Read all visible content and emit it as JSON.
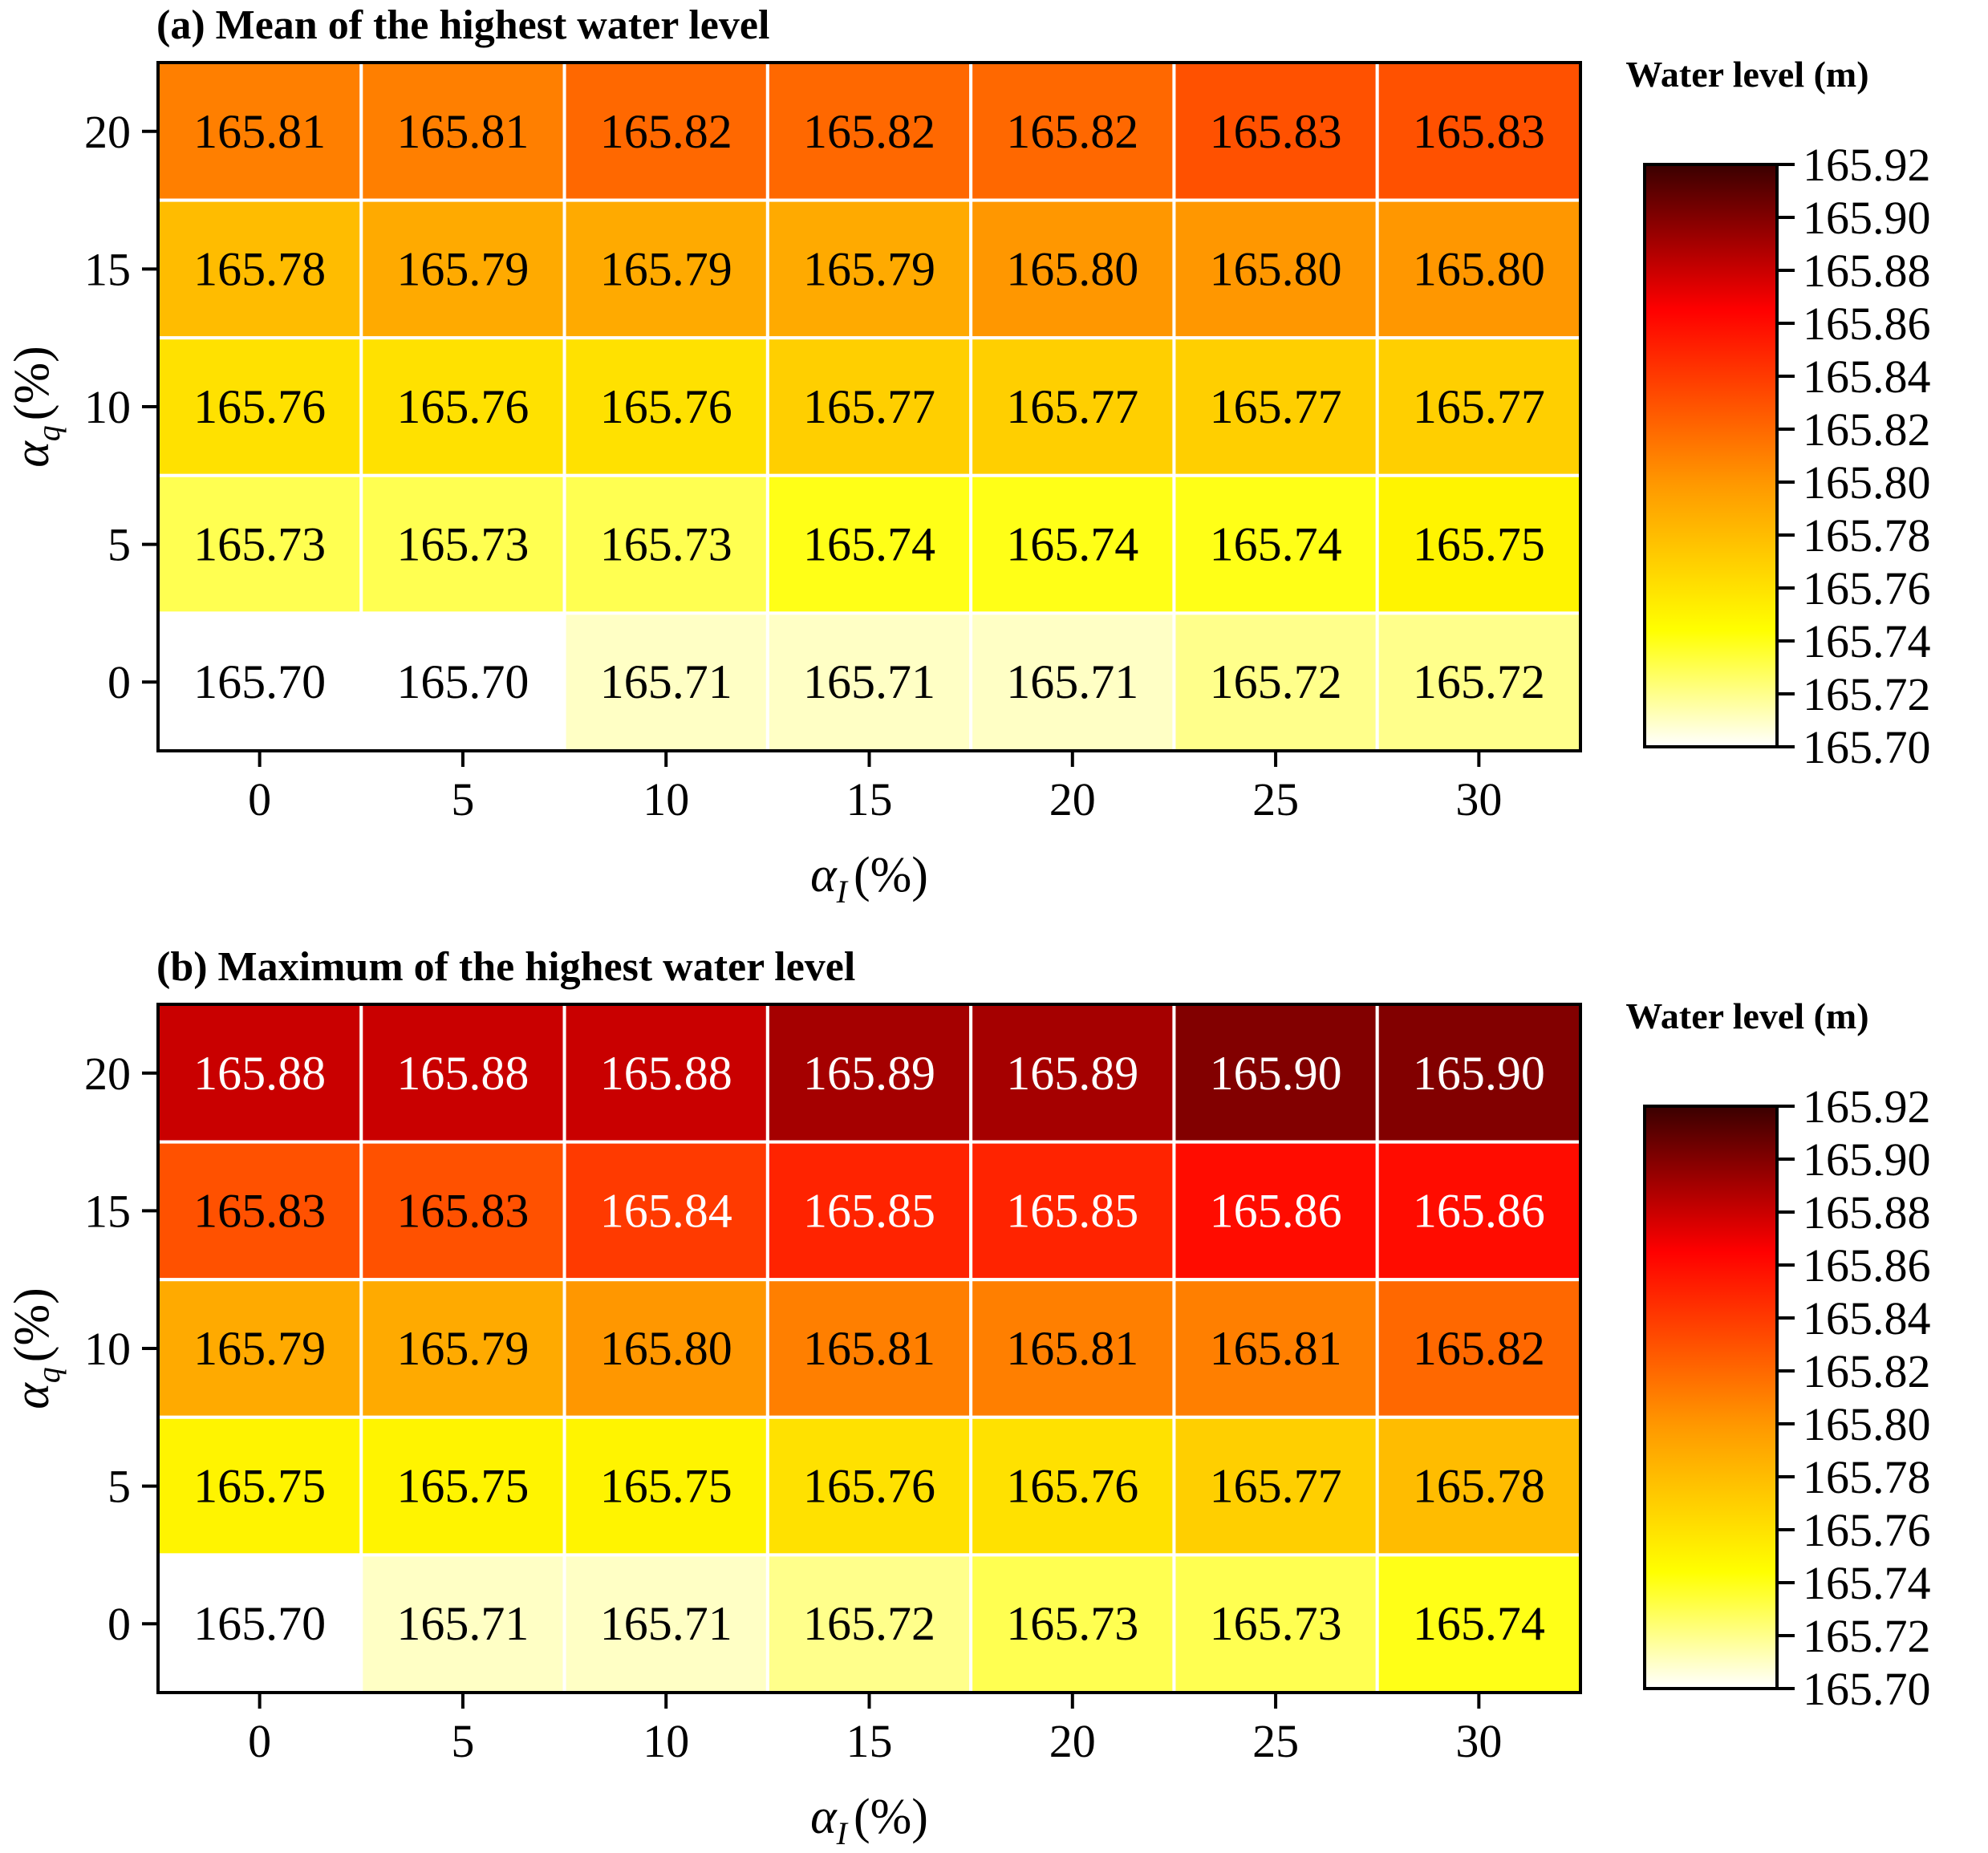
{
  "chart_data": [
    {
      "type": "heatmap",
      "title": "(a) Mean of the highest water level",
      "xlabel_symbol": "α",
      "xlabel_sub": "I",
      "xlabel_unit": "(%)",
      "ylabel_symbol": "α",
      "ylabel_sub": "q",
      "ylabel_unit": "(%)",
      "x": [
        "0",
        "5",
        "10",
        "15",
        "20",
        "25",
        "30"
      ],
      "y": [
        "20",
        "15",
        "10",
        "5",
        "0"
      ],
      "values": [
        [
          165.81,
          165.81,
          165.82,
          165.82,
          165.82,
          165.83,
          165.83
        ],
        [
          165.78,
          165.79,
          165.79,
          165.79,
          165.8,
          165.8,
          165.8
        ],
        [
          165.76,
          165.76,
          165.76,
          165.77,
          165.77,
          165.77,
          165.77
        ],
        [
          165.73,
          165.73,
          165.73,
          165.74,
          165.74,
          165.74,
          165.75
        ],
        [
          165.7,
          165.7,
          165.71,
          165.71,
          165.71,
          165.72,
          165.72
        ]
      ],
      "colorbar": {
        "label": "Water level (m)",
        "range": [
          165.7,
          165.92
        ],
        "ticks": [
          "165.92",
          "165.90",
          "165.88",
          "165.86",
          "165.84",
          "165.82",
          "165.80",
          "165.78",
          "165.76",
          "165.74",
          "165.72",
          "165.70"
        ]
      }
    },
    {
      "type": "heatmap",
      "title": "(b) Maximum of the highest water level",
      "xlabel_symbol": "α",
      "xlabel_sub": "I",
      "xlabel_unit": "(%)",
      "ylabel_symbol": "α",
      "ylabel_sub": "q",
      "ylabel_unit": "(%)",
      "x": [
        "0",
        "5",
        "10",
        "15",
        "20",
        "25",
        "30"
      ],
      "y": [
        "20",
        "15",
        "10",
        "5",
        "0"
      ],
      "values": [
        [
          165.88,
          165.88,
          165.88,
          165.89,
          165.89,
          165.9,
          165.9
        ],
        [
          165.83,
          165.83,
          165.84,
          165.85,
          165.85,
          165.86,
          165.86
        ],
        [
          165.79,
          165.79,
          165.8,
          165.81,
          165.81,
          165.81,
          165.82
        ],
        [
          165.75,
          165.75,
          165.75,
          165.76,
          165.76,
          165.77,
          165.78
        ],
        [
          165.7,
          165.71,
          165.71,
          165.72,
          165.73,
          165.73,
          165.74
        ]
      ],
      "colorbar": {
        "label": "Water level (m)",
        "range": [
          165.7,
          165.92
        ],
        "ticks": [
          "165.92",
          "165.90",
          "165.88",
          "165.86",
          "165.84",
          "165.82",
          "165.80",
          "165.78",
          "165.76",
          "165.74",
          "165.72",
          "165.70"
        ]
      }
    }
  ],
  "colormap": [
    "#ffffff",
    "#ffff00",
    "#ff9900",
    "#ff0000",
    "#3a0000"
  ]
}
